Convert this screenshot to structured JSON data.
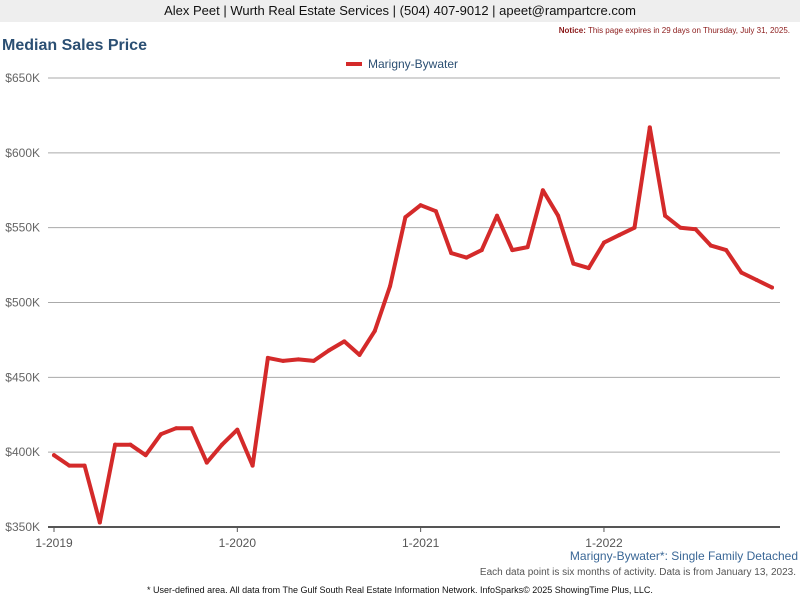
{
  "header": {
    "contact": "Alex Peet | Wurth Real Estate Services | (504) 407-9012 | apeet@rampartcre.com",
    "notice_label": "Notice:",
    "notice_text": "This page expires in 29 days on Thursday, July 31, 2025."
  },
  "caption": "Marigny-Bywater*: Single Family Detached",
  "footnote_data": "Each data point is six months of activity. Data is from January 13, 2023.",
  "footnote_source": "* User-defined area. All data from The Gulf South Real Estate Information Network. InfoSparks© 2025 ShowingTime Plus, LLC.",
  "colors": {
    "series": "#d42a2a",
    "title": "#2b4f73",
    "grid": "#aaaaaa",
    "axis": "#555555"
  },
  "chart_data": {
    "type": "line",
    "title": "Median Sales Price",
    "xlabel": "",
    "ylabel": "",
    "ylim": [
      350000,
      650000
    ],
    "y_ticks": [
      350000,
      400000,
      450000,
      500000,
      550000,
      600000,
      650000
    ],
    "y_tick_labels": [
      "$350K",
      "$400K",
      "$450K",
      "$500K",
      "$550K",
      "$600K",
      "$650K"
    ],
    "x_ticks": [
      "2019-01",
      "2020-01",
      "2021-01",
      "2022-01"
    ],
    "x_tick_labels": [
      "1-2019",
      "1-2020",
      "1-2021",
      "1-2022"
    ],
    "grid": true,
    "legend_position": "top-center",
    "series": [
      {
        "name": "Marigny-Bywater",
        "x": [
          "2019-01",
          "2019-02",
          "2019-03",
          "2019-04",
          "2019-05",
          "2019-06",
          "2019-07",
          "2019-08",
          "2019-09",
          "2019-10",
          "2019-11",
          "2019-12",
          "2020-01",
          "2020-02",
          "2020-03",
          "2020-04",
          "2020-05",
          "2020-06",
          "2020-07",
          "2020-08",
          "2020-09",
          "2020-10",
          "2020-11",
          "2020-12",
          "2021-01",
          "2021-02",
          "2021-03",
          "2021-04",
          "2021-05",
          "2021-06",
          "2021-07",
          "2021-08",
          "2021-09",
          "2021-10",
          "2021-11",
          "2021-12",
          "2022-01",
          "2022-02",
          "2022-03",
          "2022-04",
          "2022-05",
          "2022-06",
          "2022-07",
          "2022-08",
          "2022-09",
          "2022-10",
          "2022-11",
          "2022-12"
        ],
        "values": [
          398000,
          391000,
          391000,
          353000,
          405000,
          405000,
          398000,
          412000,
          416000,
          416000,
          393000,
          405000,
          415000,
          391000,
          463000,
          461000,
          462000,
          461000,
          468000,
          474000,
          465000,
          481000,
          511000,
          557000,
          565000,
          561000,
          533000,
          530000,
          535000,
          558000,
          535000,
          537000,
          575000,
          558000,
          526000,
          523000,
          540000,
          545000,
          550000,
          617000,
          558000,
          550000,
          549000,
          538000,
          535000,
          520000,
          515000,
          510000
        ]
      }
    ]
  }
}
